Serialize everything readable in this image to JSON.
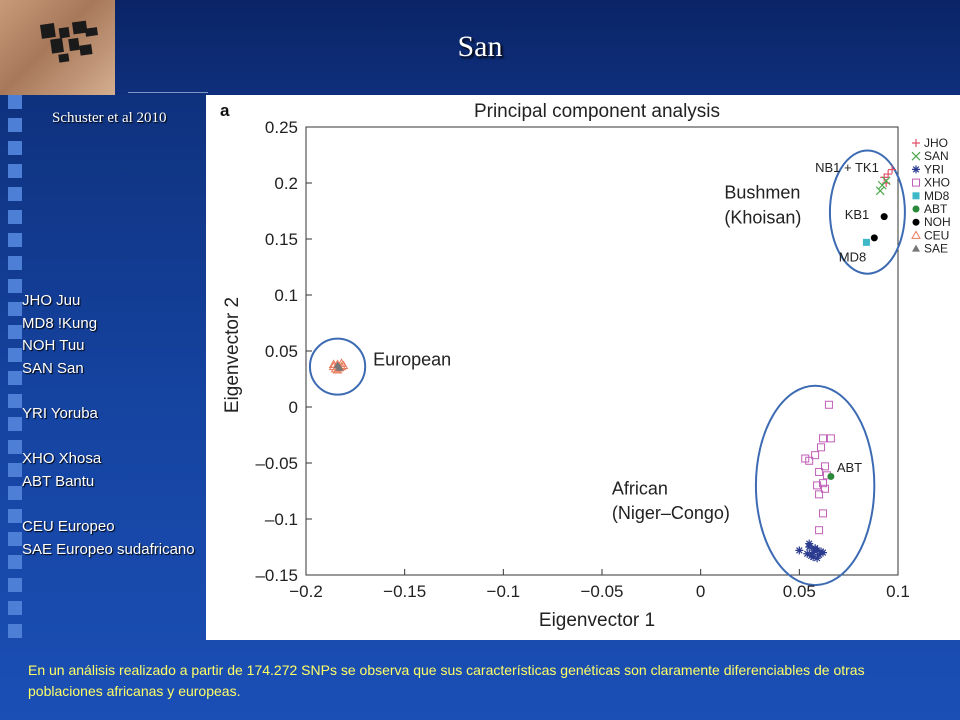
{
  "slide": {
    "title": "San",
    "citation": "Schuster et al 2010",
    "populations": [
      {
        "code": "JHO",
        "name": "Juu"
      },
      {
        "code": "MD8",
        "name": "!Kung"
      },
      {
        "code": "NOH",
        "name": "Tuu"
      },
      {
        "code": "SAN",
        "name": "San"
      },
      {
        "code": "YRI",
        "name": "Yoruba"
      },
      {
        "code": "XHO",
        "name": "Xhosa"
      },
      {
        "code": "ABT",
        "name": "Bantu"
      },
      {
        "code": "CEU",
        "name": "Europeo"
      },
      {
        "code": "SAE",
        "name": "Europeo sudafricano"
      }
    ],
    "population_labels": [
      "JHO Juu",
      "MD8 !Kung",
      "NOH Tuu",
      "SAN San",
      "YRI Yoruba",
      "XHO Xhosa",
      "ABT Bantu",
      "CEU Europeo",
      "SAE Europeo sudafricano"
    ],
    "caption": "En un análisis realizado a partir de 174.272 SNPs se observa que sus características genéticas son claramente diferenciables de otras poblaciones africanas y europeas.",
    "colors": {
      "caption": "#ffff66",
      "background": "#123a8a"
    }
  },
  "chart_data": {
    "type": "scatter",
    "panel_label": "a",
    "title": "Principal component analysis",
    "xlabel": "Eigenvector 1",
    "ylabel": "Eigenvector 2",
    "xlim": [
      -0.2,
      0.1
    ],
    "ylim": [
      -0.15,
      0.25
    ],
    "xticks": [
      -0.2,
      -0.15,
      -0.1,
      -0.05,
      0,
      0.05,
      0.1
    ],
    "xtick_labels": [
      "−0.2",
      "−0.15",
      "−0.1",
      "−0.05",
      "0",
      "0.05",
      "0.1"
    ],
    "yticks": [
      0.25,
      0.2,
      0.15,
      0.1,
      0.05,
      0,
      -0.05,
      -0.1,
      -0.15
    ],
    "ytick_labels": [
      "0.25",
      "0.2",
      "0.15",
      "0.1",
      "0.05",
      "0",
      "–0.05",
      "–0.1",
      "–0.15"
    ],
    "grid": false,
    "legend_position": "right",
    "series": [
      {
        "name": "JHO",
        "marker": "plus",
        "color": "#e0506a",
        "x": [
          0.093,
          0.095,
          0.097,
          0.094
        ],
        "y": [
          0.205,
          0.208,
          0.212,
          0.2
        ]
      },
      {
        "name": "SAN",
        "marker": "x",
        "color": "#4caa4c",
        "x": [
          0.092,
          0.094,
          0.091
        ],
        "y": [
          0.198,
          0.202,
          0.193
        ]
      },
      {
        "name": "YRI",
        "marker": "star",
        "color": "#2b3b8f",
        "x": [
          0.05,
          0.055,
          0.057,
          0.059,
          0.06,
          0.056,
          0.058,
          0.061,
          0.054,
          0.057,
          0.059,
          0.062,
          0.055,
          0.058
        ],
        "y": [
          -0.128,
          -0.125,
          -0.13,
          -0.128,
          -0.132,
          -0.133,
          -0.127,
          -0.129,
          -0.131,
          -0.134,
          -0.135,
          -0.13,
          -0.122,
          -0.126
        ]
      },
      {
        "name": "XHO",
        "marker": "square-open",
        "color": "#c060b8",
        "x": [
          0.065,
          0.062,
          0.066,
          0.053,
          0.058,
          0.061,
          0.063,
          0.055,
          0.06,
          0.064,
          0.062,
          0.059,
          0.063,
          0.06,
          0.062,
          0.06
        ],
        "y": [
          0.002,
          -0.028,
          -0.028,
          -0.046,
          -0.043,
          -0.036,
          -0.053,
          -0.048,
          -0.058,
          -0.061,
          -0.068,
          -0.07,
          -0.073,
          -0.078,
          -0.095,
          -0.11
        ]
      },
      {
        "name": "MD8",
        "marker": "square",
        "color": "#3cb8c8",
        "x": [
          0.084
        ],
        "y": [
          0.147
        ]
      },
      {
        "name": "ABT",
        "marker": "dot",
        "color": "#2a8a3a",
        "x": [
          0.066
        ],
        "y": [
          -0.062
        ]
      },
      {
        "name": "NOH",
        "marker": "dot",
        "color": "#000000",
        "x": [
          0.093,
          0.088
        ],
        "y": [
          0.17,
          0.151
        ]
      },
      {
        "name": "CEU",
        "marker": "triangle-open",
        "color": "#e87a5a",
        "x": [
          -0.186,
          -0.184,
          -0.182,
          -0.185,
          -0.183,
          -0.181,
          -0.184,
          -0.186,
          -0.182
        ],
        "y": [
          0.036,
          0.038,
          0.036,
          0.034,
          0.035,
          0.037,
          0.033,
          0.038,
          0.039
        ]
      },
      {
        "name": "SAE",
        "marker": "triangle",
        "color": "#777777",
        "x": [
          -0.183,
          -0.184
        ],
        "y": [
          0.035,
          0.037
        ]
      }
    ],
    "annotations": [
      {
        "text": "NB1 + TK1",
        "x": 0.058,
        "y": 0.21
      },
      {
        "text": "KB1",
        "x": 0.073,
        "y": 0.168
      },
      {
        "text": "MD8",
        "x": 0.07,
        "y": 0.13
      },
      {
        "text": "ABT",
        "x": 0.069,
        "y": -0.058
      },
      {
        "text": "European",
        "x": -0.166,
        "y": 0.037
      },
      {
        "text": "Bushmen",
        "x": 0.012,
        "y": 0.186
      },
      {
        "text": "(Khoisan)",
        "x": 0.012,
        "y": 0.164
      },
      {
        "text": "African",
        "x": -0.045,
        "y": -0.078
      },
      {
        "text": "(Niger–Congo)",
        "x": -0.045,
        "y": -0.1
      }
    ],
    "clusters": [
      {
        "name": "european",
        "cx": -0.184,
        "cy": 0.036,
        "rx": 0.014,
        "ry": 0.025
      },
      {
        "name": "bushmen",
        "cx": 0.0845,
        "cy": 0.174,
        "rx": 0.019,
        "ry": 0.055
      },
      {
        "name": "african",
        "cx": 0.058,
        "cy": -0.07,
        "rx": 0.03,
        "ry": 0.089
      }
    ]
  }
}
